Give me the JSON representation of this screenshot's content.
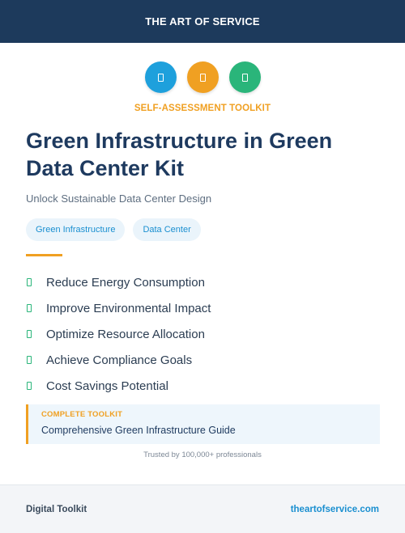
{
  "header": {
    "title": "THE ART OF SERVICE"
  },
  "icons": [
    {
      "name": "document-icon",
      "color": "#1ea0dc"
    },
    {
      "name": "document-icon",
      "color": "#f0a022"
    },
    {
      "name": "document-icon",
      "color": "#2ab57a"
    }
  ],
  "kicker": "SELF-ASSESSMENT TOOLKIT",
  "title": "Green Infrastructure in Green Data Center Kit",
  "subtitle": "Unlock Sustainable Data Center Design",
  "tags": [
    "Green Infrastructure",
    "Data Center"
  ],
  "benefits": [
    "Reduce Energy Consumption",
    "Improve Environmental Impact",
    "Optimize Resource Allocation",
    "Achieve Compliance Goals",
    "Cost Savings Potential"
  ],
  "callout": {
    "kicker": "COMPLETE TOOLKIT",
    "text": "Comprehensive Green Infrastructure Guide"
  },
  "trusted": "Trusted by 100,000+ professionals",
  "footer": {
    "left": "Digital Toolkit",
    "right": "theartofservice.com"
  },
  "colors": {
    "header_bg": "#1d3a5c",
    "accent_orange": "#f0a022",
    "accent_blue": "#1a8fd0",
    "accent_green": "#2ab57a"
  }
}
